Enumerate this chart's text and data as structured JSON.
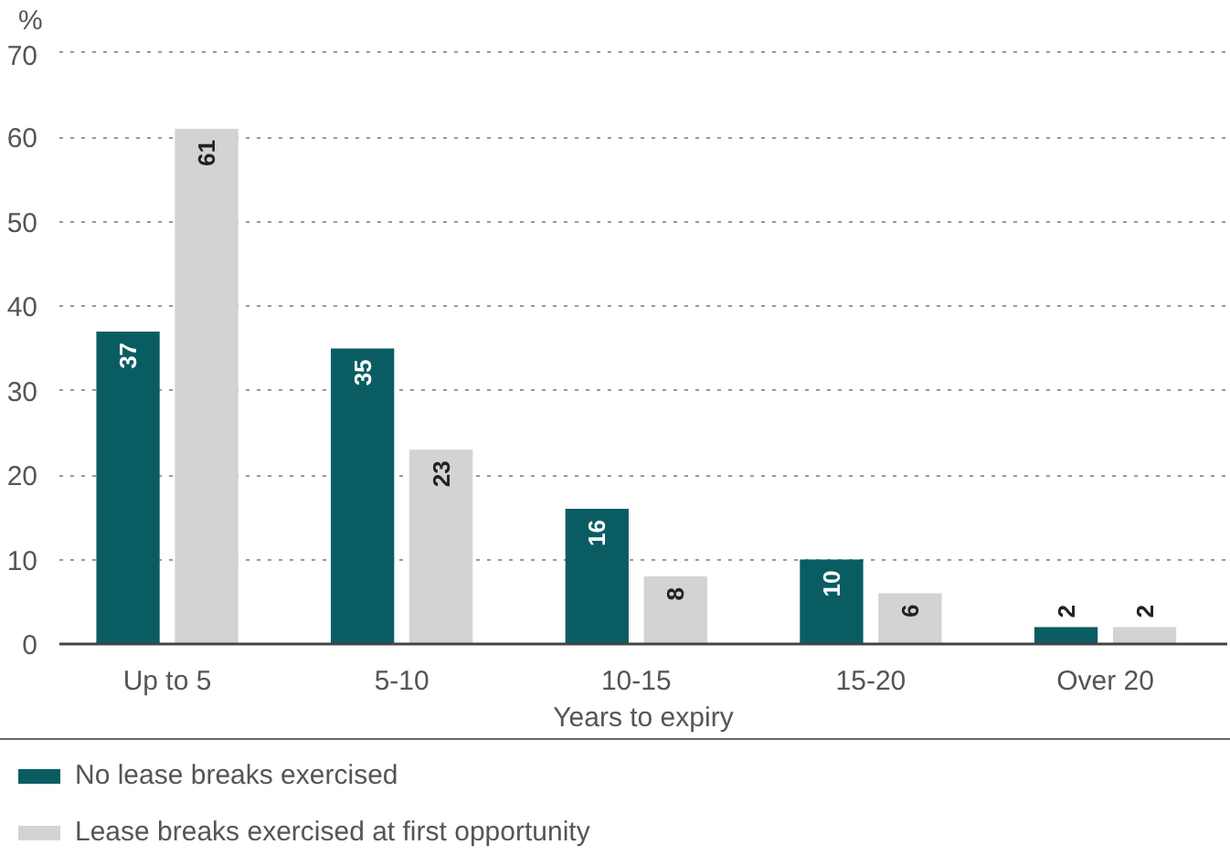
{
  "chart_data": {
    "type": "bar",
    "categories": [
      "Up to 5",
      "5-10",
      "10-15",
      "15-20",
      "Over 20"
    ],
    "series": [
      {
        "name": "No lease breaks exercised",
        "color": "#0a5c63",
        "values": [
          37,
          35,
          16,
          10,
          2
        ]
      },
      {
        "name": "Lease breaks exercised at first opportunity",
        "color": "#d1d3d4",
        "values": [
          61,
          23,
          8,
          6,
          2
        ]
      }
    ],
    "xlabel": "Years to expiry",
    "ylabel": "%",
    "ylim": [
      0,
      70
    ],
    "yticks": [
      0,
      10,
      20,
      30,
      40,
      50,
      60,
      70
    ],
    "grid": "y",
    "legend": "bottom left",
    "data_labels": true
  }
}
